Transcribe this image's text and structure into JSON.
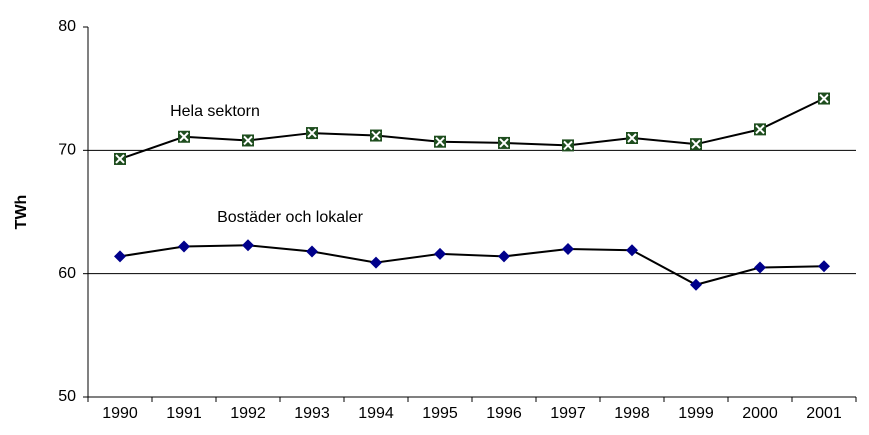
{
  "chart_data": {
    "type": "line",
    "y_label": "TWh",
    "categories": [
      "1990",
      "1991",
      "1992",
      "1993",
      "1994",
      "1995",
      "1996",
      "1997",
      "1998",
      "1999",
      "2000",
      "2001"
    ],
    "series": [
      {
        "name": "Hela sektorn",
        "color": "#1e4d1e",
        "line_color": "#000000",
        "marker": "x-square",
        "values": [
          69.3,
          71.1,
          70.8,
          71.4,
          71.2,
          70.7,
          70.6,
          70.4,
          71.0,
          70.5,
          71.7,
          74.2
        ]
      },
      {
        "name": "Bostäder och lokaler",
        "color": "#00008b",
        "line_color": "#000000",
        "marker": "diamond",
        "values": [
          61.4,
          62.2,
          62.3,
          61.8,
          60.9,
          61.6,
          61.4,
          62.0,
          61.9,
          59.1,
          60.5,
          60.6
        ]
      }
    ],
    "ylim": [
      50,
      80
    ],
    "yticks": [
      50,
      60,
      70,
      80
    ],
    "grid": true
  }
}
